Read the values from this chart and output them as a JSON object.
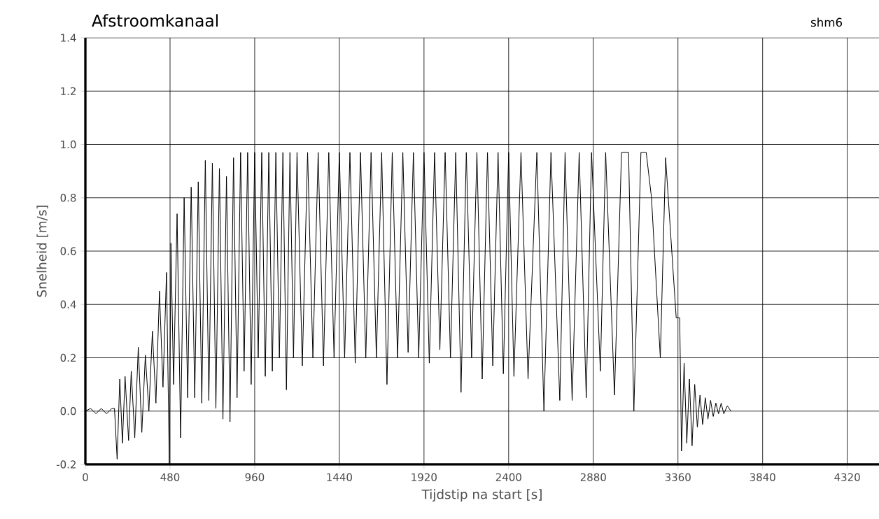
{
  "chart_data": {
    "type": "line",
    "title": "Afstroomkanaal",
    "subtitle": "shm6",
    "xlabel": "Tijdstip na start [s]",
    "ylabel": "Snelheid [m/s]",
    "xlim": [
      0,
      4500
    ],
    "ylim": [
      -0.2,
      1.4
    ],
    "xticks": [
      0,
      480,
      960,
      1440,
      1920,
      2400,
      2880,
      3360,
      3840,
      4320
    ],
    "yticks": [
      -0.2,
      {
        "value": 0,
        "label": "0.0"
      },
      0.2,
      0.4,
      0.6,
      0.8,
      {
        "value": 1,
        "label": "1.0"
      },
      1.2,
      1.4
    ],
    "grid": true,
    "marker": "none",
    "line_style": "solid",
    "x": [
      0,
      30,
      60,
      90,
      120,
      150,
      165,
      180,
      195,
      210,
      225,
      245,
      260,
      280,
      300,
      320,
      340,
      360,
      380,
      400,
      420,
      440,
      460,
      476,
      485,
      500,
      520,
      540,
      560,
      580,
      600,
      620,
      640,
      660,
      680,
      700,
      720,
      740,
      760,
      780,
      800,
      820,
      840,
      860,
      880,
      900,
      920,
      940,
      960,
      980,
      1000,
      1020,
      1040,
      1060,
      1080,
      1100,
      1120,
      1140,
      1160,
      1180,
      1200,
      1230,
      1260,
      1290,
      1320,
      1350,
      1380,
      1410,
      1440,
      1470,
      1500,
      1530,
      1560,
      1590,
      1620,
      1650,
      1680,
      1710,
      1740,
      1770,
      1800,
      1830,
      1860,
      1890,
      1920,
      1950,
      1980,
      2010,
      2040,
      2070,
      2100,
      2130,
      2160,
      2190,
      2220,
      2250,
      2280,
      2310,
      2340,
      2370,
      2400,
      2430,
      2470,
      2510,
      2560,
      2600,
      2640,
      2690,
      2720,
      2760,
      2800,
      2840,
      2870,
      2920,
      2950,
      3000,
      3040,
      3080,
      3110,
      3150,
      3180,
      3210,
      3260,
      3290,
      3320,
      3350,
      3370,
      3380,
      3395,
      3410,
      3425,
      3440,
      3455,
      3470,
      3485,
      3500,
      3515,
      3530,
      3545,
      3560,
      3575,
      3590,
      3605,
      3620,
      3640,
      3660
    ],
    "series": [
      {
        "color": "#000000",
        "values": [
          0.0,
          0.01,
          -0.01,
          0.01,
          -0.01,
          0.01,
          0.01,
          -0.18,
          0.12,
          -0.12,
          0.13,
          -0.11,
          0.15,
          -0.1,
          0.24,
          -0.08,
          0.21,
          0.0,
          0.3,
          0.03,
          0.45,
          0.09,
          0.52,
          -0.2,
          0.63,
          0.1,
          0.74,
          -0.1,
          0.8,
          0.05,
          0.84,
          0.05,
          0.86,
          0.03,
          0.94,
          0.04,
          0.93,
          0.01,
          0.91,
          -0.03,
          0.88,
          -0.04,
          0.95,
          0.05,
          0.97,
          0.15,
          0.97,
          0.1,
          0.97,
          0.2,
          0.97,
          0.13,
          0.97,
          0.15,
          0.97,
          0.2,
          0.97,
          0.08,
          0.97,
          0.2,
          0.97,
          0.17,
          0.97,
          0.2,
          0.97,
          0.17,
          0.97,
          0.2,
          0.97,
          0.2,
          0.97,
          0.18,
          0.97,
          0.2,
          0.97,
          0.2,
          0.97,
          0.1,
          0.97,
          0.2,
          0.97,
          0.22,
          0.97,
          0.2,
          0.97,
          0.18,
          0.97,
          0.23,
          0.97,
          0.2,
          0.97,
          0.07,
          0.97,
          0.2,
          0.97,
          0.12,
          0.97,
          0.17,
          0.97,
          0.14,
          0.97,
          0.13,
          0.97,
          0.12,
          0.97,
          0.0,
          0.97,
          0.04,
          0.97,
          0.04,
          0.97,
          0.05,
          0.97,
          0.15,
          0.97,
          0.06,
          0.97,
          0.97,
          0.0,
          0.97,
          0.97,
          0.8,
          0.2,
          0.95,
          0.65,
          0.35,
          0.35,
          -0.15,
          0.18,
          -0.12,
          0.12,
          -0.13,
          0.1,
          -0.06,
          0.06,
          -0.05,
          0.05,
          -0.03,
          0.04,
          -0.02,
          0.03,
          -0.01,
          0.03,
          -0.01,
          0.02,
          0.0
        ]
      }
    ]
  }
}
